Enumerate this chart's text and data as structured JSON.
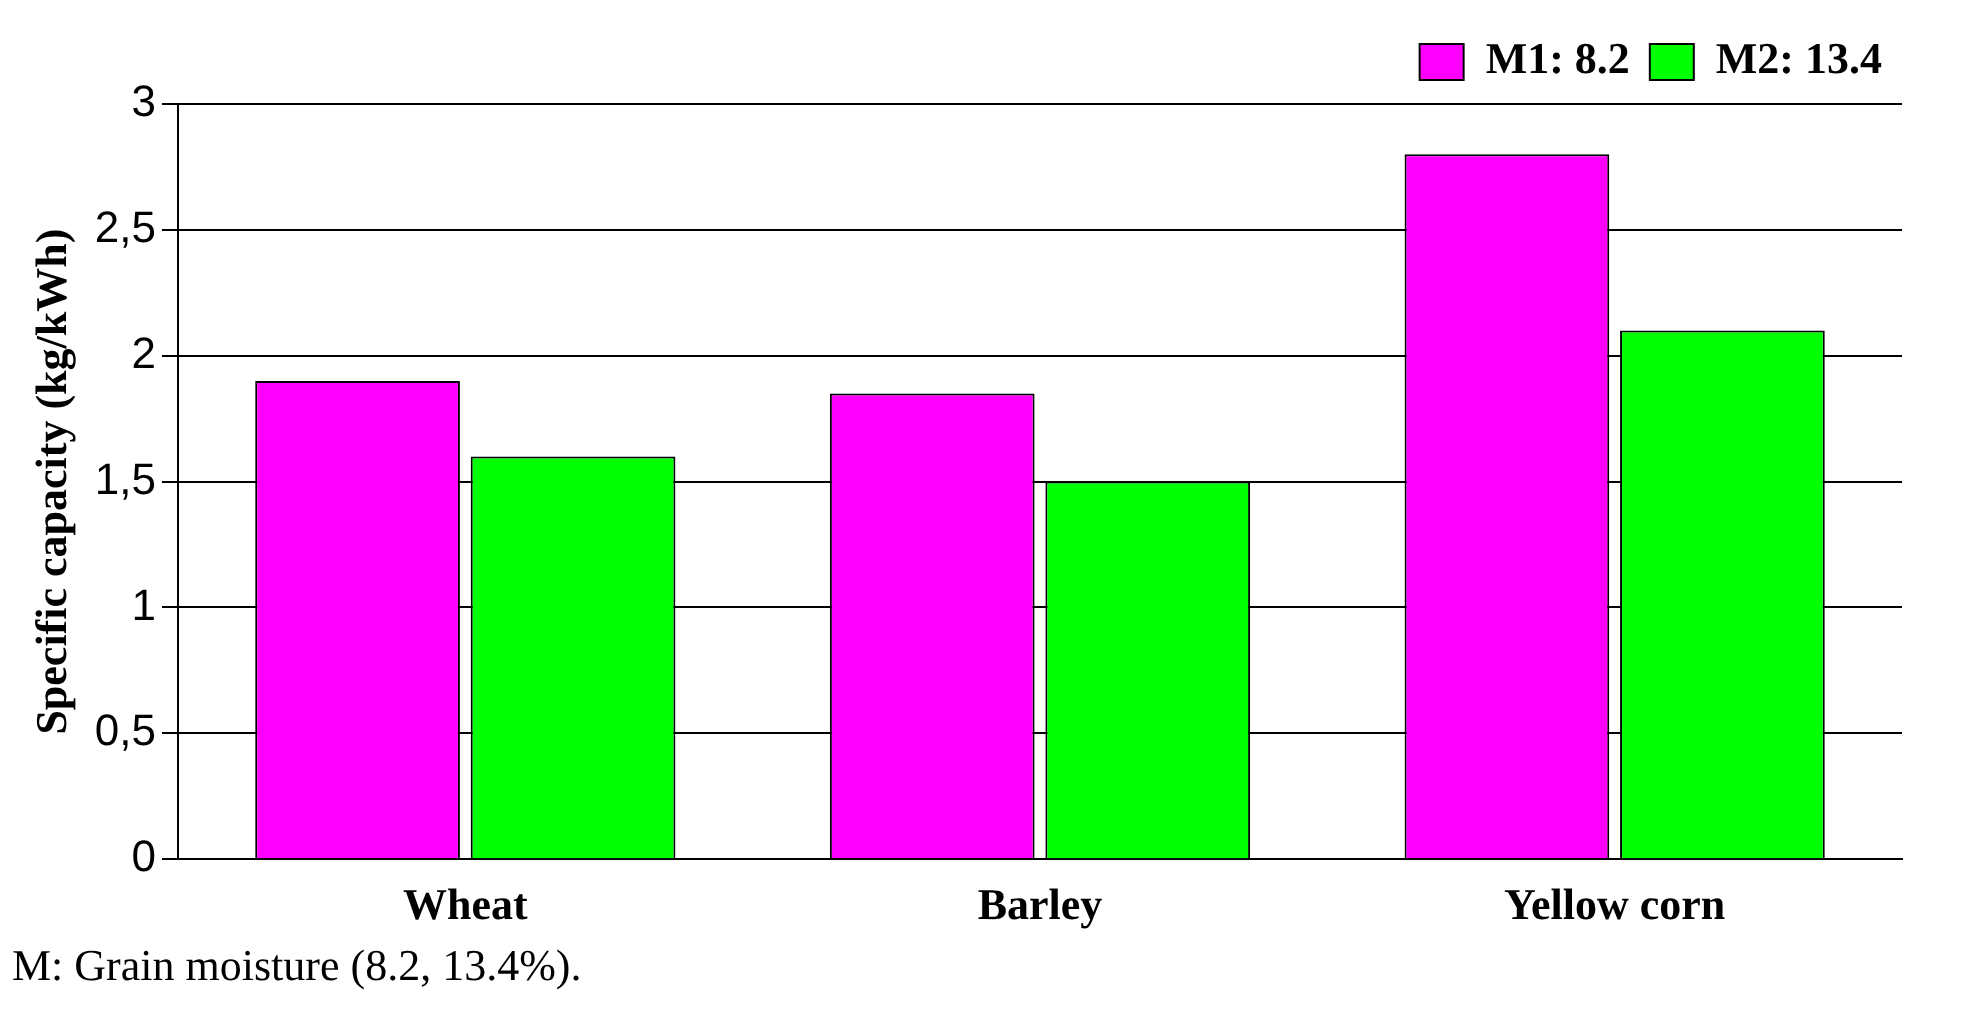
{
  "chart_data": {
    "type": "bar",
    "ylabel": "Specific capacity (kg/kWh)",
    "categories": [
      "Wheat",
      "Barley",
      "Yellow corn"
    ],
    "series": [
      {
        "name": "M1: 8.2",
        "color": "#ff00ff",
        "values": [
          1.9,
          1.85,
          2.8
        ]
      },
      {
        "name": "M2: 13.4",
        "color": "#00ff00",
        "values": [
          1.6,
          1.5,
          2.1
        ]
      }
    ],
    "ylim": [
      0,
      3
    ],
    "yticks": [
      0,
      {
        "value": 0.5,
        "label": "0,5"
      },
      1,
      {
        "value": 1.5,
        "label": "1,5"
      },
      2,
      {
        "value": 2.5,
        "label": "2,5"
      },
      3
    ],
    "grid": "y",
    "legend": "top right",
    "annotations": [
      "M: Grain moisture (8.2, 13.4%)."
    ]
  }
}
